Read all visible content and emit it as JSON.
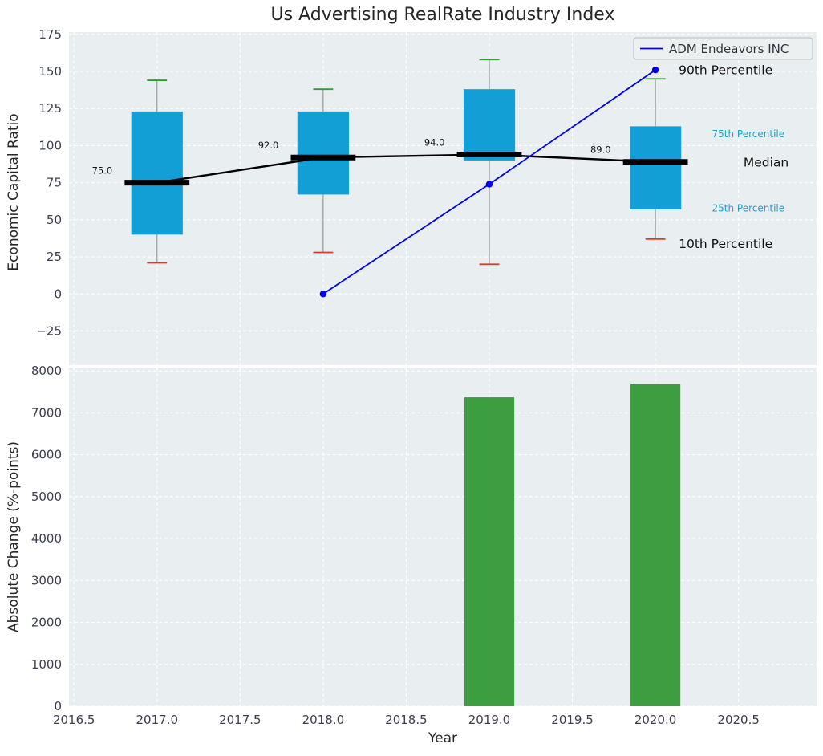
{
  "title": "Us Advertising RealRate Industry Index",
  "styles": {
    "panel_bg": "#e9eef0",
    "grid_color": "#ffffff",
    "tick_color": "#3b3f52",
    "text_color": "#262626",
    "box_color": "#129fd6",
    "bar_color": "#3c9e40",
    "line_color": "#0000ee",
    "cap_top_color": "#2ca02c",
    "cap_bottom_color": "#e5382d",
    "whisker_color": "#999999",
    "median_color": "#000000",
    "legend_bg": "#eceff1",
    "legend_border": "#b8bcc2"
  },
  "x_axis": {
    "label": "Year",
    "lim": [
      2016.47,
      2020.97
    ],
    "ticks": [
      {
        "v": 2016.5,
        "label": "2016.5"
      },
      {
        "v": 2017.0,
        "label": "2017.0"
      },
      {
        "v": 2017.5,
        "label": "2017.5"
      },
      {
        "v": 2018.0,
        "label": "2018.0"
      },
      {
        "v": 2018.5,
        "label": "2018.5"
      },
      {
        "v": 2019.0,
        "label": "2019.0"
      },
      {
        "v": 2019.5,
        "label": "2019.5"
      },
      {
        "v": 2020.0,
        "label": "2020.0"
      },
      {
        "v": 2020.5,
        "label": "2020.5"
      }
    ]
  },
  "chart_data": [
    {
      "type": "boxplot",
      "title": "Us Advertising RealRate Industry Index",
      "ylabel": "Economic Capital Ratio",
      "ylim": [
        -48,
        176.5
      ],
      "yticks": [
        {
          "v": 175,
          "label": "175"
        },
        {
          "v": 150,
          "label": "150"
        },
        {
          "v": 125,
          "label": "125"
        },
        {
          "v": 100,
          "label": "100"
        },
        {
          "v": 75,
          "label": "75"
        },
        {
          "v": 50,
          "label": "50"
        },
        {
          "v": 25,
          "label": "25"
        },
        {
          "v": 0,
          "label": "0"
        },
        {
          "v": -25,
          "label": "−25"
        }
      ],
      "box_width": 0.31,
      "boxes": [
        {
          "year": 2017,
          "p10": 21,
          "p25": 40,
          "median": 75,
          "p75": 123,
          "p90": 144,
          "label": "75.0"
        },
        {
          "year": 2018,
          "p10": 28,
          "p25": 67,
          "median": 92,
          "p75": 123,
          "p90": 138,
          "label": "92.0"
        },
        {
          "year": 2019,
          "p10": 20,
          "p25": 90,
          "median": 94,
          "p75": 138,
          "p90": 158,
          "label": "94.0"
        },
        {
          "year": 2020,
          "p10": 37,
          "p25": 57,
          "median": 89,
          "p75": 113,
          "p90": 145,
          "label": "89.0"
        }
      ],
      "median_line": {
        "x": [
          2017,
          2018,
          2019,
          2020
        ],
        "y": [
          75,
          92,
          94,
          89
        ]
      },
      "series": [
        {
          "name": "ADM Endeavors INC",
          "color": "#0000ee",
          "x": [
            2018,
            2019,
            2020
          ],
          "y": [
            0,
            74,
            151
          ]
        }
      ],
      "annotations": [
        {
          "text": "90th Percentile",
          "x": 2020.14,
          "y": 151,
          "size": 15.5,
          "color": "#111111"
        },
        {
          "text": "75th Percentile",
          "x": 2020.34,
          "y": 108,
          "size": 12,
          "color": "#1e9fca"
        },
        {
          "text": "Median",
          "x": 2020.53,
          "y": 89,
          "size": 15.5,
          "color": "#111111"
        },
        {
          "text": "25th Percentile",
          "x": 2020.34,
          "y": 58,
          "size": 12,
          "color": "#1e9fca"
        },
        {
          "text": "10th Percentile",
          "x": 2020.14,
          "y": 34,
          "size": 15.5,
          "color": "#111111"
        }
      ],
      "legend": {
        "label": "ADM Endeavors INC",
        "position": "upper right"
      }
    },
    {
      "type": "bar",
      "ylabel": "Absolute Change (%-points)",
      "xlabel": "Year",
      "ylim": [
        0,
        8080
      ],
      "yticks": [
        {
          "v": 0,
          "label": "0"
        },
        {
          "v": 1000,
          "label": "1000"
        },
        {
          "v": 2000,
          "label": "2000"
        },
        {
          "v": 3000,
          "label": "3000"
        },
        {
          "v": 4000,
          "label": "4000"
        },
        {
          "v": 5000,
          "label": "5000"
        },
        {
          "v": 6000,
          "label": "6000"
        },
        {
          "v": 7000,
          "label": "7000"
        },
        {
          "v": 8000,
          "label": "8000"
        }
      ],
      "bar_width": 0.3,
      "bars": [
        {
          "x": 2019,
          "value": 7370
        },
        {
          "x": 2020,
          "value": 7680
        }
      ]
    }
  ]
}
